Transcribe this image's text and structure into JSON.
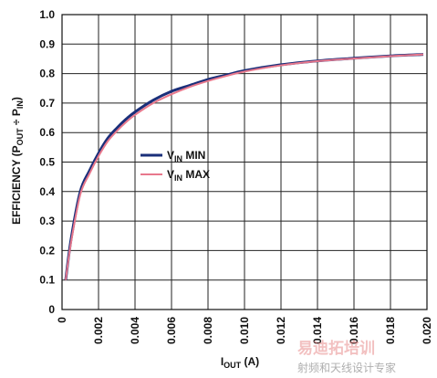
{
  "chart_data": {
    "type": "line",
    "xlabel": {
      "main": "I",
      "sub": "OUT",
      "tail": " (A)"
    },
    "ylabel": {
      "parts": [
        {
          "t": "EFFICIENCY (P",
          "sub": false
        },
        {
          "t": "OUT",
          "sub": true
        },
        {
          "t": " ÷ P",
          "sub": false
        },
        {
          "t": "IN",
          "sub": true
        },
        {
          "t": ")",
          "sub": false
        }
      ]
    },
    "xlim": [
      0,
      0.02
    ],
    "ylim": [
      0,
      1.0
    ],
    "x_ticks": [
      "0",
      "0.002",
      "0.004",
      "0.006",
      "0.008",
      "0.010",
      "0.012",
      "0.014",
      "0.016",
      "0.018",
      "0.020"
    ],
    "y_ticks": [
      "0",
      "0.1",
      "0.2",
      "0.3",
      "0.4",
      "0.5",
      "0.6",
      "0.7",
      "0.8",
      "0.9",
      "1.0"
    ],
    "grid": true,
    "legend_position": "center-left",
    "series": [
      {
        "name": {
          "main": "V",
          "sub": "IN",
          "tail": " MIN"
        },
        "color": "#1a2f7a",
        "x": [
          0.0002,
          0.0005,
          0.001,
          0.0015,
          0.002,
          0.0025,
          0.003,
          0.0035,
          0.004,
          0.005,
          0.006,
          0.007,
          0.008,
          0.009,
          0.01,
          0.012,
          0.014,
          0.016,
          0.018,
          0.0198
        ],
        "y": [
          0.1,
          0.24,
          0.4,
          0.47,
          0.53,
          0.58,
          0.615,
          0.645,
          0.67,
          0.71,
          0.74,
          0.76,
          0.78,
          0.795,
          0.81,
          0.83,
          0.843,
          0.852,
          0.86,
          0.865
        ]
      },
      {
        "name": {
          "main": "V",
          "sub": "IN",
          "tail": " MAX"
        },
        "color": "#e8788c",
        "x": [
          0.0002,
          0.0005,
          0.001,
          0.0015,
          0.002,
          0.0025,
          0.003,
          0.0035,
          0.004,
          0.005,
          0.006,
          0.007,
          0.008,
          0.009,
          0.01,
          0.012,
          0.014,
          0.016,
          0.018,
          0.0198
        ],
        "y": [
          0.1,
          0.23,
          0.39,
          0.46,
          0.52,
          0.57,
          0.605,
          0.635,
          0.66,
          0.7,
          0.73,
          0.755,
          0.775,
          0.792,
          0.807,
          0.828,
          0.842,
          0.851,
          0.859,
          0.865
        ]
      }
    ]
  },
  "watermark": {
    "line1": "易迪拓培训",
    "line2": "射频和天线设计专家"
  }
}
